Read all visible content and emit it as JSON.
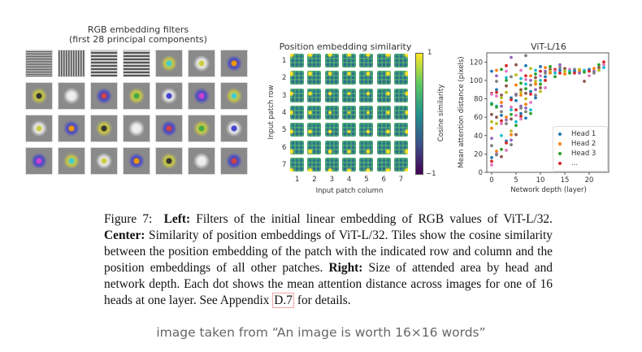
{
  "left_panel": {
    "title_line1": "RGB embedding filters",
    "title_line2": "(first 28 principal components)"
  },
  "center_panel": {
    "title": "Position embedding similarity",
    "row_ticks": [
      "1",
      "2",
      "3",
      "4",
      "5",
      "6",
      "7"
    ],
    "col_ticks": [
      "1",
      "2",
      "3",
      "4",
      "5",
      "6",
      "7"
    ],
    "ylabel": "Input patch row",
    "xlabel": "Input patch column",
    "colorbar_label": "Cosine similarity",
    "colorbar_max": "1",
    "colorbar_min": "−1"
  },
  "chart_data": {
    "type": "scatter",
    "title": "ViT-L/16",
    "xlabel": "Network depth (layer)",
    "ylabel": "Mean attention distance (pixels)",
    "xlim": [
      -1,
      24
    ],
    "ylim": [
      0,
      130
    ],
    "xticks": [
      "0",
      "5",
      "10",
      "15",
      "20"
    ],
    "yticks": [
      "0",
      "20",
      "40",
      "60",
      "80",
      "100",
      "120"
    ],
    "legend": {
      "placement": "lower-right",
      "entries": [
        "Head 1",
        "Head 2",
        "Head 3",
        "..."
      ]
    },
    "series_colors": [
      "#1f77b4",
      "#ff7f0e",
      "#2ca02c",
      "#d62728",
      "#9467bd",
      "#8c564b",
      "#e377c2",
      "#7f7f7f",
      "#bcbd22",
      "#17becf"
    ],
    "points_by_layer": [
      {
        "layer": 0,
        "y": [
          110,
          86,
          85,
          75,
          74,
          63,
          55,
          48,
          37,
          29,
          16,
          12,
          8
        ]
      },
      {
        "layer": 1,
        "y": [
          111,
          105,
          99,
          90,
          87,
          83,
          72,
          71,
          60,
          53,
          23,
          20,
          19
        ]
      },
      {
        "layer": 2,
        "y": [
          112,
          84,
          81,
          76,
          72,
          66,
          62,
          56,
          53,
          40,
          25,
          17
        ]
      },
      {
        "layer": 3,
        "y": [
          116,
          110,
          103,
          100,
          94,
          87,
          60,
          57,
          53,
          34,
          32,
          24
        ]
      },
      {
        "layer": 4,
        "y": [
          125,
          104,
          81,
          79,
          71,
          68,
          63,
          58,
          45,
          41,
          35,
          30
        ]
      },
      {
        "layer": 5,
        "y": [
          117,
          106,
          95,
          85,
          84,
          78,
          68,
          62,
          55,
          51,
          41
        ]
      },
      {
        "layer": 6,
        "y": [
          111,
          102,
          97,
          90,
          87,
          84,
          72,
          70,
          64,
          61,
          58
        ]
      },
      {
        "layer": 7,
        "y": [
          127,
          116,
          105,
          101,
          96,
          91,
          86,
          80,
          74,
          70,
          66,
          59
        ]
      },
      {
        "layer": 8,
        "y": [
          113,
          105,
          100,
          95,
          88,
          85,
          76,
          68,
          64
        ]
      },
      {
        "layer": 9,
        "y": [
          111,
          107,
          103,
          99,
          96,
          90,
          84,
          81
        ]
      },
      {
        "layer": 10,
        "y": [
          115,
          110,
          105,
          100,
          96,
          92,
          88
        ]
      },
      {
        "layer": 11,
        "y": [
          114,
          110,
          108,
          104,
          100,
          92
        ]
      },
      {
        "layer": 12,
        "y": [
          115,
          112,
          110,
          108
        ]
      },
      {
        "layer": 13,
        "y": [
          112,
          110,
          108,
          104
        ]
      },
      {
        "layer": 14,
        "y": [
          117,
          114,
          111,
          108
        ]
      },
      {
        "layer": 15,
        "y": [
          113,
          110,
          107
        ]
      },
      {
        "layer": 16,
        "y": [
          112,
          110,
          108
        ]
      },
      {
        "layer": 17,
        "y": [
          112,
          110,
          108
        ]
      },
      {
        "layer": 18,
        "y": [
          112,
          110,
          108
        ]
      },
      {
        "layer": 19,
        "y": [
          111,
          109,
          99
        ]
      },
      {
        "layer": 20,
        "y": [
          112,
          110,
          105
        ]
      },
      {
        "layer": 21,
        "y": [
          113,
          110,
          108
        ]
      },
      {
        "layer": 22,
        "y": [
          117,
          114,
          111
        ]
      },
      {
        "layer": 23,
        "y": [
          120,
          117,
          114
        ]
      }
    ]
  },
  "caption": {
    "label": "Figure 7:",
    "left_head": "Left:",
    "left_text": "Filters of the initial linear embedding of RGB values of ViT-L/32.",
    "center_head": "Center:",
    "center_text": "Similarity of position embeddings of ViT-L/32. Tiles show the cosine similarity between the position embedding of the patch with the indicated row and column and the position embeddings of all other patches.",
    "right_head": "Right:",
    "right_text": "Size of attended area by head and network depth. Each dot shows the mean attention distance across images for one of 16 heads at one layer. See Appendix",
    "appendix_ref": "D.7",
    "tail": "for details."
  },
  "credit": "image taken from “An image is worth 16×16 words”"
}
